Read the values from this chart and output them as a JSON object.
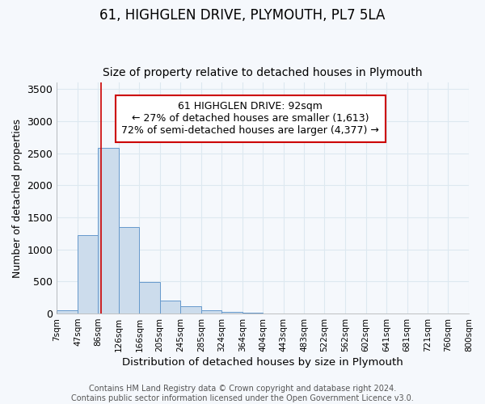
{
  "title": "61, HIGHGLEN DRIVE, PLYMOUTH, PL7 5LA",
  "subtitle": "Size of property relative to detached houses in Plymouth",
  "xlabel": "Distribution of detached houses by size in Plymouth",
  "ylabel": "Number of detached properties",
  "bin_edges": [
    7,
    47,
    86,
    126,
    166,
    205,
    245,
    285,
    324,
    364,
    404,
    443,
    483,
    522,
    562,
    602,
    641,
    681,
    721,
    760,
    800
  ],
  "bar_heights": [
    50,
    1220,
    2580,
    1350,
    490,
    200,
    110,
    50,
    30,
    10,
    5,
    0,
    0,
    0,
    0,
    0,
    0,
    0,
    0,
    0
  ],
  "bar_color": "#ccdcec",
  "bar_edge_color": "#6699cc",
  "property_size": 92,
  "vline_color": "#cc0000",
  "annotation_text": "61 HIGHGLEN DRIVE: 92sqm\n← 27% of detached houses are smaller (1,613)\n72% of semi-detached houses are larger (4,377) →",
  "annotation_box_color": "#ffffff",
  "annotation_box_edge": "#cc0000",
  "ylim": [
    0,
    3600
  ],
  "yticks": [
    0,
    500,
    1000,
    1500,
    2000,
    2500,
    3000,
    3500
  ],
  "footer": "Contains HM Land Registry data © Crown copyright and database right 2024.\nContains public sector information licensed under the Open Government Licence v3.0.",
  "bg_color": "#f5f8fc",
  "grid_color": "#dde8f0",
  "title_fontsize": 12,
  "subtitle_fontsize": 10,
  "xlabel_fontsize": 9.5,
  "ylabel_fontsize": 9,
  "annotation_fontsize": 9,
  "footer_fontsize": 7
}
